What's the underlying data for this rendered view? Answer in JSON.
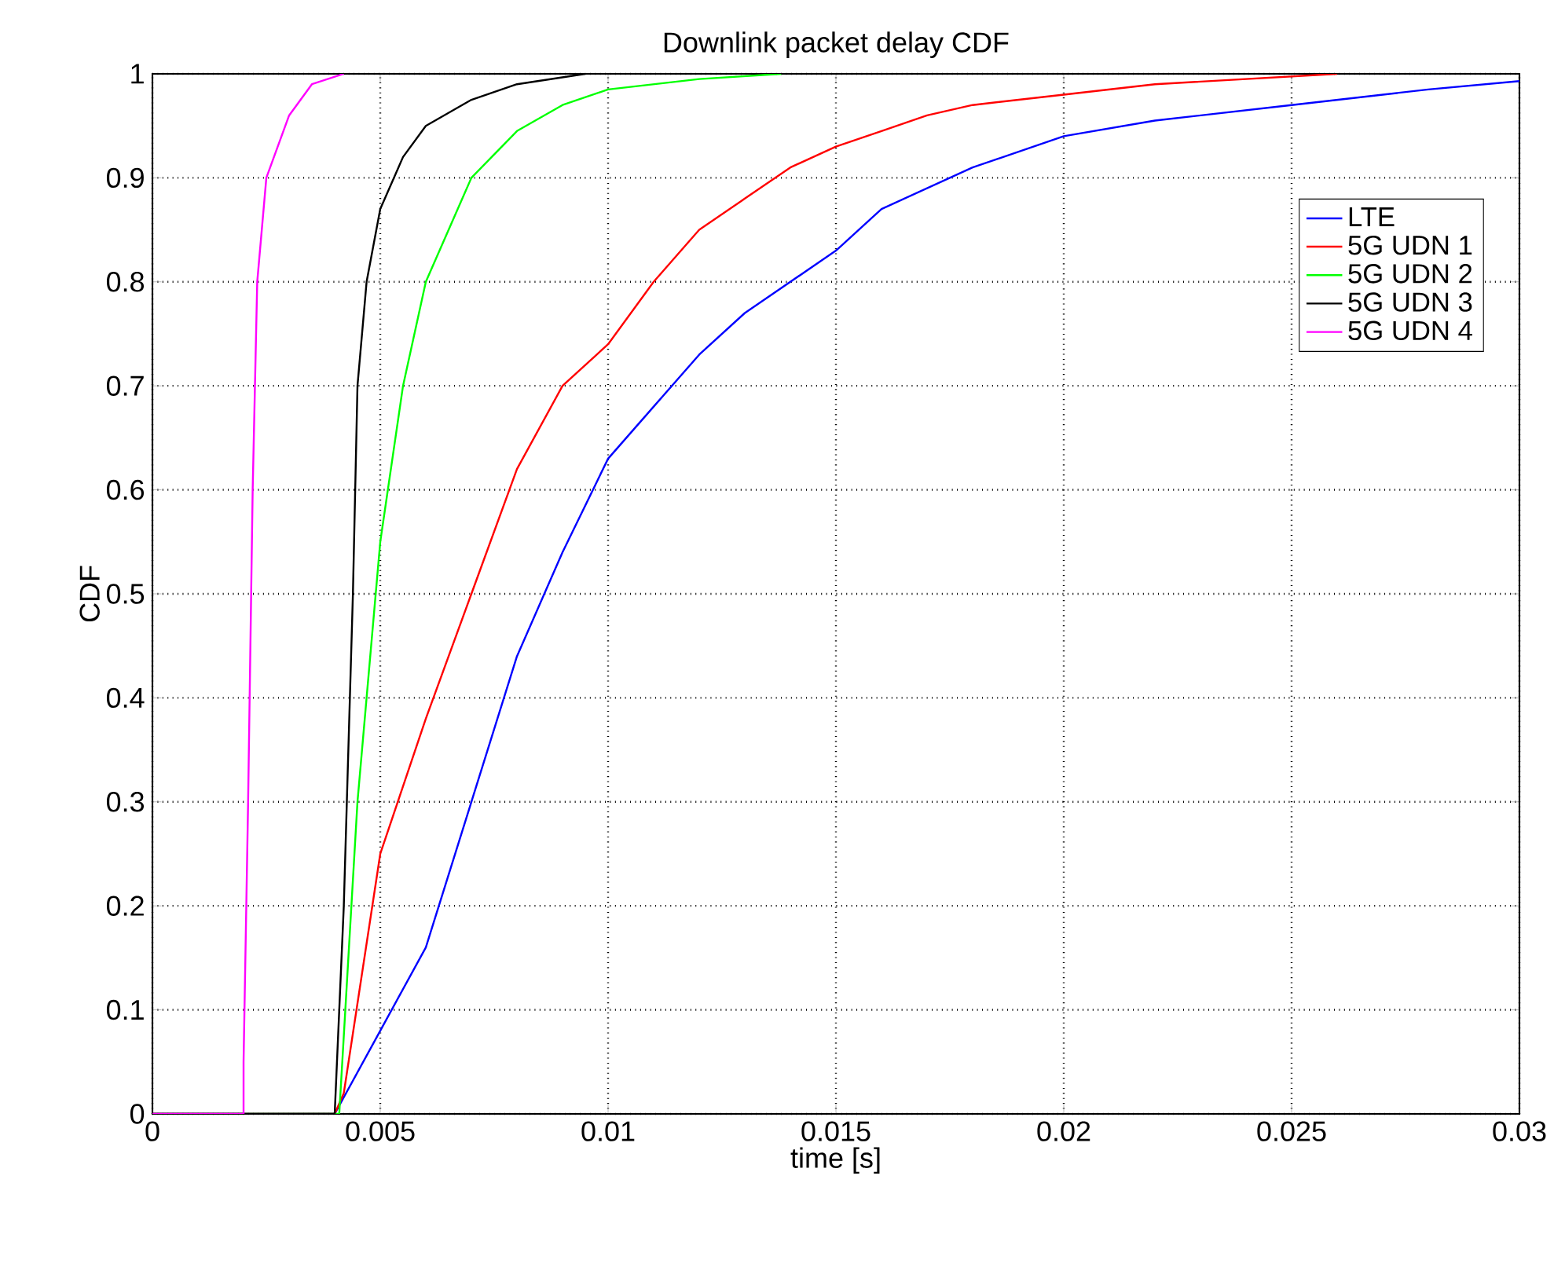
{
  "chart_data": {
    "type": "line",
    "title": "Downlink packet delay CDF",
    "xlabel": "time [s]",
    "ylabel": "CDF",
    "xlim": [
      0,
      0.03
    ],
    "ylim": [
      0,
      1
    ],
    "xticks": [
      0,
      0.005,
      0.01,
      0.015,
      0.02,
      0.025,
      0.03
    ],
    "yticks": [
      0,
      0.1,
      0.2,
      0.3,
      0.4,
      0.5,
      0.6,
      0.7,
      0.8,
      0.9,
      1
    ],
    "grid": true,
    "legend": "top right",
    "marker": "none",
    "line_style": "solid",
    "series": [
      {
        "name": "LTE",
        "color": "#0000ff",
        "x": [
          0,
          0.004,
          0.005,
          0.006,
          0.007,
          0.008,
          0.009,
          0.01,
          0.011,
          0.012,
          0.013,
          0.014,
          0.015,
          0.016,
          0.018,
          0.02,
          0.022,
          0.025,
          0.028,
          0.03
        ],
        "values": [
          0,
          0,
          0.08,
          0.16,
          0.3,
          0.44,
          0.54,
          0.63,
          0.68,
          0.73,
          0.77,
          0.8,
          0.83,
          0.87,
          0.91,
          0.94,
          0.955,
          0.97,
          0.985,
          0.993
        ]
      },
      {
        "name": "5G UDN 1",
        "color": "#ff0000",
        "x": [
          0,
          0.004,
          0.0042,
          0.005,
          0.006,
          0.007,
          0.008,
          0.009,
          0.01,
          0.011,
          0.012,
          0.013,
          0.014,
          0.015,
          0.016,
          0.017,
          0.018,
          0.02,
          0.022,
          0.026
        ],
        "values": [
          0,
          0,
          0.02,
          0.25,
          0.38,
          0.5,
          0.62,
          0.7,
          0.74,
          0.8,
          0.85,
          0.88,
          0.91,
          0.93,
          0.945,
          0.96,
          0.97,
          0.98,
          0.99,
          1
        ]
      },
      {
        "name": "5G UDN 2",
        "color": "#00ff00",
        "x": [
          0,
          0.0041,
          0.0045,
          0.005,
          0.0055,
          0.006,
          0.007,
          0.008,
          0.009,
          0.01,
          0.012,
          0.0138
        ],
        "values": [
          0,
          0,
          0.3,
          0.55,
          0.7,
          0.8,
          0.9,
          0.945,
          0.97,
          0.985,
          0.995,
          1
        ]
      },
      {
        "name": "5G UDN 3",
        "color": "#000000",
        "x": [
          0,
          0.004,
          0.0042,
          0.0044,
          0.0045,
          0.0047,
          0.005,
          0.0055,
          0.006,
          0.007,
          0.008,
          0.0095
        ],
        "values": [
          0,
          0,
          0.2,
          0.5,
          0.7,
          0.8,
          0.87,
          0.92,
          0.95,
          0.975,
          0.99,
          1
        ]
      },
      {
        "name": "5G UDN 4",
        "color": "#ff00ff",
        "x": [
          0,
          0.002,
          0.002,
          0.0021,
          0.0022,
          0.0023,
          0.0025,
          0.003,
          0.0035,
          0.0042
        ],
        "values": [
          0,
          0,
          0.05,
          0.3,
          0.6,
          0.8,
          0.9,
          0.96,
          0.99,
          1
        ]
      }
    ]
  }
}
